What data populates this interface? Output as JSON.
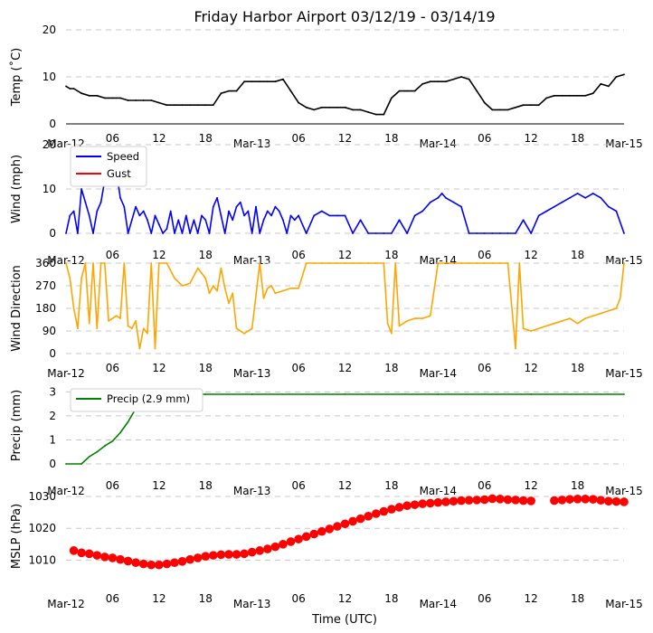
{
  "title": "Friday Harbor Airport 03/12/19 - 03/14/19",
  "xlabel": "Time (UTC)",
  "x_ticks": [
    "Mar-12",
    "06",
    "12",
    "18",
    "Mar-13",
    "06",
    "12",
    "18",
    "Mar-14",
    "06",
    "12",
    "18",
    "Mar-15"
  ],
  "x_range_hours": [
    0,
    72
  ],
  "colors": {
    "temp": "#000000",
    "speed": "#0000ff",
    "gust": "#ff0000",
    "dir": "#ffa500",
    "precip": "#008000",
    "mslp": "#ff0000",
    "grid": "#c8c8c8"
  },
  "chart_data": [
    {
      "type": "line",
      "ylabel": "Temp ($^\\circ$C)",
      "ylabel_display": "Temp (˚C)",
      "ylim": [
        0,
        20
      ],
      "yticks": [
        "0",
        "10",
        "20"
      ],
      "grid": true,
      "series": [
        {
          "color": "#000000",
          "x": [
            0,
            0.5,
            1,
            2,
            3,
            4,
            5,
            6,
            7,
            8,
            9,
            10,
            11,
            12,
            13,
            14,
            15,
            16,
            17,
            18,
            19,
            20,
            21,
            22,
            23,
            24,
            25,
            26,
            27,
            28,
            29,
            30,
            31,
            32,
            33,
            34,
            35,
            36,
            37,
            38,
            39,
            40,
            41,
            42,
            43,
            44,
            45,
            46,
            47,
            48,
            49,
            50,
            51,
            52,
            53,
            54,
            55,
            56,
            57,
            58,
            59,
            60,
            61,
            62,
            63,
            64,
            65,
            66,
            67,
            68,
            69,
            70,
            71,
            72
          ],
          "y": [
            8,
            7.5,
            7.5,
            6.5,
            6,
            6,
            5.5,
            5.5,
            5.5,
            5,
            5,
            5,
            5,
            4.5,
            4,
            4,
            4,
            4,
            4,
            4,
            4,
            6.5,
            7,
            7,
            9,
            9,
            9,
            9,
            9,
            9.5,
            7,
            4.5,
            3.5,
            3,
            3.5,
            3.5,
            3.5,
            3.5,
            3,
            3,
            2.5,
            2,
            2,
            5.5,
            7,
            7,
            7,
            8.5,
            9,
            9,
            9,
            9.5,
            10,
            9.5,
            7,
            4.5,
            3,
            3,
            3,
            3.5,
            4,
            4,
            4,
            5.5,
            6,
            6,
            6,
            6,
            6,
            6.5,
            8.5,
            8,
            10,
            10.5
          ]
        }
      ]
    },
    {
      "type": "line",
      "ylabel": "Wind (mph)",
      "ylim": [
        0,
        20
      ],
      "yticks": [
        "0",
        "10",
        "20"
      ],
      "grid": true,
      "legend": "upper-left",
      "series": [
        {
          "name": "Speed",
          "color": "#0000ff",
          "x": [
            0,
            0.5,
            1,
            1.5,
            2,
            2.5,
            3,
            3.5,
            4,
            4.5,
            5,
            5.5,
            6,
            6.5,
            7,
            7.5,
            8,
            8.5,
            9,
            9.5,
            10,
            10.5,
            11,
            11.5,
            12,
            12.5,
            13,
            13.5,
            14,
            14.5,
            15,
            15.5,
            16,
            16.5,
            17,
            17.5,
            18,
            18.5,
            19,
            19.5,
            20,
            20.5,
            21,
            21.5,
            22,
            22.5,
            23,
            23.5,
            24,
            24.5,
            25,
            25.5,
            26,
            26.5,
            27,
            27.5,
            28,
            28.5,
            29,
            29.5,
            30,
            31,
            32,
            33,
            34,
            35,
            36,
            37,
            38,
            39,
            40,
            41,
            42,
            43,
            44,
            45,
            46,
            47,
            48,
            48.5,
            49,
            50,
            51,
            52,
            53,
            54,
            55,
            56,
            57,
            58,
            59,
            60,
            61,
            62,
            63,
            64,
            65,
            66,
            67,
            68,
            69,
            70,
            71,
            72
          ],
          "y": [
            0,
            4,
            5,
            0,
            10,
            7,
            4,
            0,
            5,
            7,
            12,
            13,
            15,
            14,
            8,
            6,
            0,
            3,
            6,
            4,
            5,
            3,
            0,
            4,
            2,
            0,
            1,
            5,
            0,
            3,
            0,
            4,
            0,
            3,
            0,
            4,
            3,
            0,
            6,
            8,
            4,
            0,
            5,
            3,
            6,
            7,
            4,
            5,
            0,
            6,
            0,
            3,
            5,
            4,
            6,
            5,
            3,
            0,
            4,
            3,
            4,
            0,
            4,
            5,
            4,
            4,
            4,
            0,
            3,
            0,
            0,
            0,
            0,
            3,
            0,
            4,
            5,
            7,
            8,
            9,
            8,
            7,
            6,
            0,
            0,
            0,
            0,
            0,
            0,
            0,
            3,
            0,
            4,
            5,
            6,
            7,
            8,
            9,
            8,
            9,
            8,
            6,
            5,
            0
          ]
        },
        {
          "name": "Gust",
          "color": "#ff0000",
          "x": [],
          "y": []
        }
      ]
    },
    {
      "type": "line",
      "ylabel": "Wind Direction",
      "ylim": [
        0,
        360
      ],
      "yticks": [
        "0",
        "90",
        "180",
        "270",
        "360"
      ],
      "grid": true,
      "series": [
        {
          "color": "#ffa500",
          "x": [
            0,
            0.5,
            1,
            1.5,
            2,
            2.5,
            3,
            3.5,
            4,
            4.5,
            5,
            5.5,
            6,
            6.5,
            7,
            7.5,
            8,
            8.5,
            9,
            9.5,
            10,
            10.5,
            11,
            11.5,
            12,
            13,
            14,
            15,
            16,
            17,
            18,
            18.5,
            19,
            19.5,
            20,
            20.5,
            21,
            21.5,
            22,
            23,
            24,
            25,
            25.5,
            26,
            26.5,
            27,
            28,
            29,
            30,
            31,
            32,
            33,
            34,
            35,
            36,
            37,
            38,
            39,
            40,
            41,
            41.5,
            42,
            42.5,
            43,
            44,
            45,
            46,
            47,
            48,
            49,
            50,
            51,
            52,
            53,
            54,
            55,
            56,
            57,
            58,
            58.5,
            59,
            60,
            61,
            62,
            63,
            64,
            65,
            66,
            67,
            68,
            69,
            70,
            71,
            71.5,
            72
          ],
          "y": [
            360,
            300,
            180,
            100,
            300,
            360,
            120,
            360,
            100,
            360,
            360,
            130,
            140,
            150,
            140,
            360,
            110,
            100,
            130,
            20,
            100,
            80,
            360,
            20,
            360,
            360,
            300,
            270,
            280,
            340,
            300,
            240,
            270,
            250,
            340,
            260,
            200,
            240,
            100,
            80,
            100,
            360,
            220,
            260,
            270,
            240,
            250,
            260,
            260,
            360,
            360,
            360,
            360,
            360,
            360,
            360,
            360,
            360,
            360,
            360,
            120,
            80,
            360,
            110,
            130,
            140,
            140,
            150,
            360,
            360,
            360,
            360,
            360,
            360,
            360,
            360,
            360,
            360,
            20,
            360,
            100,
            90,
            100,
            110,
            120,
            130,
            140,
            120,
            140,
            150,
            160,
            170,
            180,
            220,
            360
          ]
        }
      ]
    },
    {
      "type": "line",
      "ylabel": "Precip (mm)",
      "ylim": [
        0,
        3.2
      ],
      "yticks": [
        "0",
        "1",
        "2",
        "3"
      ],
      "grid": true,
      "legend": "upper-left",
      "series": [
        {
          "name": "Precip (2.9 mm)",
          "color": "#008000",
          "x": [
            0,
            2,
            3,
            4,
            5,
            6,
            7,
            8,
            9,
            10,
            12,
            18,
            24,
            36,
            48,
            60,
            72
          ],
          "y": [
            0,
            0,
            0.3,
            0.5,
            0.75,
            0.95,
            1.3,
            1.75,
            2.3,
            2.9,
            2.9,
            2.9,
            2.9,
            2.9,
            2.9,
            2.9,
            2.9
          ]
        }
      ]
    },
    {
      "type": "scatter",
      "ylabel": "MSLP (hPa)",
      "ylim": [
        1005,
        1030
      ],
      "yticks": [
        "1010",
        "1020",
        "1030"
      ],
      "grid": true,
      "series": [
        {
          "color": "#ff0000",
          "x": [
            1,
            2,
            3,
            4,
            5,
            6,
            7,
            8,
            9,
            10,
            11,
            12,
            13,
            14,
            15,
            16,
            17,
            18,
            19,
            20,
            21,
            22,
            23,
            24,
            25,
            26,
            27,
            28,
            29,
            30,
            31,
            32,
            33,
            34,
            35,
            36,
            37,
            38,
            39,
            40,
            41,
            42,
            43,
            44,
            45,
            46,
            47,
            48,
            49,
            50,
            51,
            52,
            53,
            54,
            55,
            56,
            57,
            58,
            59,
            60,
            63,
            64,
            65,
            66,
            67,
            68,
            69,
            70,
            71,
            72
          ],
          "y": [
            1013,
            1012.3,
            1012,
            1011.5,
            1011,
            1010.7,
            1010.2,
            1009.7,
            1009.2,
            1008.8,
            1008.5,
            1008.5,
            1008.8,
            1009.2,
            1009.6,
            1010.2,
            1010.7,
            1011.2,
            1011.5,
            1011.7,
            1011.8,
            1011.8,
            1012.0,
            1012.5,
            1013.0,
            1013.5,
            1014.2,
            1015.0,
            1015.8,
            1016.6,
            1017.4,
            1018.2,
            1019.0,
            1019.8,
            1020.6,
            1021.4,
            1022.2,
            1023.0,
            1023.8,
            1024.6,
            1025.3,
            1026.0,
            1026.6,
            1027.1,
            1027.4,
            1027.7,
            1027.9,
            1028.1,
            1028.3,
            1028.5,
            1028.7,
            1028.8,
            1028.9,
            1029.0,
            1029.3,
            1029.2,
            1029.0,
            1028.9,
            1028.7,
            1028.6,
            1028.7,
            1028.9,
            1029.1,
            1029.2,
            1029.2,
            1029.1,
            1028.8,
            1028.5,
            1028.4,
            1028.3
          ]
        }
      ]
    }
  ]
}
